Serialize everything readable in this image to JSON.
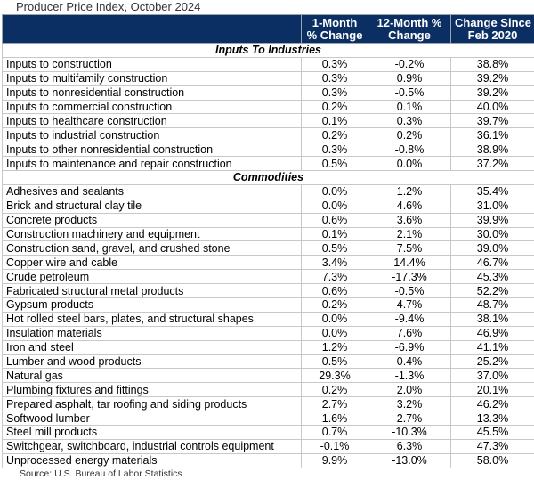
{
  "title": "Producer Price Index, October 2024",
  "columns": [
    "",
    "1-Month\n% Change",
    "12-Month %\nChange",
    "Change Since\nFeb 2020"
  ],
  "columns_lines": [
    [
      "1-Month",
      "% Change"
    ],
    [
      "12-Month %",
      "Change"
    ],
    [
      "Change Since",
      "Feb 2020"
    ]
  ],
  "sections": [
    {
      "name": "Inputs To Industries",
      "rows": [
        [
          "Inputs to construction",
          "0.3%",
          "-0.2%",
          "38.8%"
        ],
        [
          "Inputs to multifamily construction",
          "0.3%",
          "0.9%",
          "39.2%"
        ],
        [
          "Inputs to nonresidential construction",
          "0.3%",
          "-0.5%",
          "39.2%"
        ],
        [
          "Inputs to commercial construction",
          "0.2%",
          "0.1%",
          "40.0%"
        ],
        [
          "Inputs to healthcare construction",
          "0.1%",
          "0.3%",
          "39.7%"
        ],
        [
          "Inputs to industrial construction",
          "0.2%",
          "0.2%",
          "36.1%"
        ],
        [
          "Inputs to other nonresidential construction",
          "0.3%",
          "-0.8%",
          "38.9%"
        ],
        [
          "Inputs to maintenance and repair construction",
          "0.5%",
          "0.0%",
          "37.2%"
        ]
      ]
    },
    {
      "name": "Commodities",
      "rows": [
        [
          "Adhesives and sealants",
          "0.0%",
          "1.2%",
          "35.4%"
        ],
        [
          "Brick and structural clay tile",
          "0.0%",
          "4.6%",
          "31.0%"
        ],
        [
          "Concrete products",
          "0.6%",
          "3.6%",
          "39.9%"
        ],
        [
          "Construction machinery and equipment",
          "0.1%",
          "2.1%",
          "30.0%"
        ],
        [
          "Construction sand, gravel, and crushed stone",
          "0.5%",
          "7.5%",
          "39.0%"
        ],
        [
          "Copper wire and cable",
          "3.4%",
          "14.4%",
          "46.7%"
        ],
        [
          "Crude petroleum",
          "7.3%",
          "-17.3%",
          "45.3%"
        ],
        [
          "Fabricated structural metal products",
          "0.6%",
          "-0.5%",
          "52.2%"
        ],
        [
          "Gypsum products",
          "0.2%",
          "4.7%",
          "48.7%"
        ],
        [
          "Hot rolled steel bars, plates, and structural shapes",
          "0.0%",
          "-9.4%",
          "38.1%"
        ],
        [
          "Insulation materials",
          "0.0%",
          "7.6%",
          "46.9%"
        ],
        [
          "Iron and steel",
          "1.2%",
          "-6.9%",
          "41.1%"
        ],
        [
          "Lumber and wood products",
          "0.5%",
          "0.4%",
          "25.2%"
        ],
        [
          "Natural gas",
          "29.3%",
          "-1.3%",
          "37.0%"
        ],
        [
          "Plumbing fixtures and fittings",
          "0.2%",
          "2.0%",
          "20.1%"
        ],
        [
          "Prepared asphalt, tar roofing and siding products",
          "2.7%",
          "3.2%",
          "46.2%"
        ],
        [
          "Softwood lumber",
          "1.6%",
          "2.7%",
          "13.3%"
        ],
        [
          "Steel mill products",
          "0.7%",
          "-10.3%",
          "45.5%"
        ],
        [
          "Switchgear, switchboard, industrial controls equipment",
          "-0.1%",
          "6.3%",
          "47.3%"
        ],
        [
          "Unprocessed energy materials",
          "9.9%",
          "-13.0%",
          "58.0%"
        ]
      ]
    }
  ],
  "source": "Source: U.S. Bureau of Labor Statistics",
  "colors": {
    "header_bg": "#0b2f62",
    "header_text": "#ffffff",
    "grid": "#c8c8c8"
  }
}
